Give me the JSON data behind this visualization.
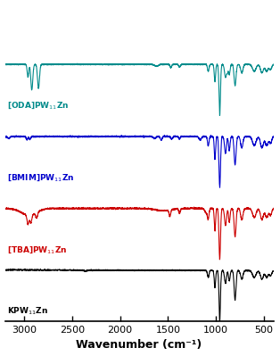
{
  "xlabel": "Wavenumber (cm⁻¹)",
  "xlim": [
    3200,
    400
  ],
  "x_ticks": [
    3000,
    2500,
    2000,
    1500,
    1000,
    500
  ],
  "background_color": "#ffffff",
  "spectra": [
    {
      "label": "[ODA]PW$_{11}$Zn",
      "color": "#008B8B",
      "label_color": "#008B8B",
      "type": 0
    },
    {
      "label": "[BMIM]PW$_{11}$Zn",
      "color": "#0000cc",
      "label_color": "#0000cc",
      "type": 1
    },
    {
      "label": "[TBA]PW$_{11}$Zn",
      "color": "#cc0000",
      "label_color": "#cc0000",
      "type": 2
    },
    {
      "label": "KPW$_{11}$Zn",
      "color": "#000000",
      "label_color": "#000000",
      "type": 3
    }
  ]
}
